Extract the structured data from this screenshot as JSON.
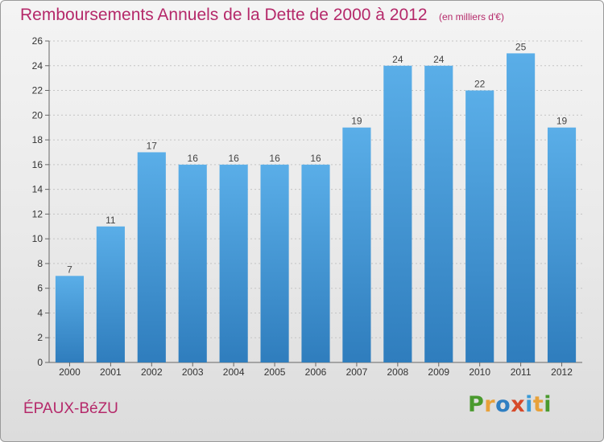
{
  "header": {
    "title": "Remboursements Annuels de la Dette de 2000 à 2012",
    "subtitle": "(en milliers d'€)"
  },
  "footer": {
    "commune": "ÉPAUX-BéZU",
    "brand": "Proxiti",
    "brand_letters": [
      {
        "ch": "P",
        "color": "#4a9a2e"
      },
      {
        "ch": "r",
        "color": "#e8a13a"
      },
      {
        "ch": "o",
        "color": "#2f7fc2"
      },
      {
        "ch": "x",
        "color": "#d64a2a"
      },
      {
        "ch": "i",
        "color": "#3a9ad6"
      },
      {
        "ch": "t",
        "color": "#e8a13a"
      },
      {
        "ch": "i",
        "color": "#4a9a2e"
      }
    ]
  },
  "colors": {
    "title": "#b5296a",
    "bar_top": "#5aaee8",
    "bar_bottom": "#2f7dbd"
  },
  "chart_data": {
    "type": "bar",
    "title": "Remboursements Annuels de la Dette de 2000 à 2012",
    "subtitle": "(en milliers d'€)",
    "xlabel": "",
    "ylabel": "",
    "categories": [
      "2000",
      "2001",
      "2002",
      "2003",
      "2004",
      "2005",
      "2006",
      "2007",
      "2008",
      "2009",
      "2010",
      "2011",
      "2012"
    ],
    "values": [
      7,
      11,
      17,
      16,
      16,
      16,
      16,
      19,
      24,
      24,
      22,
      25,
      19
    ],
    "ylim": [
      0,
      26
    ],
    "yticks": [
      0,
      2,
      4,
      6,
      8,
      10,
      12,
      14,
      16,
      18,
      20,
      22,
      24,
      26
    ],
    "grid": "horizontal dotted",
    "data_labels": true
  }
}
